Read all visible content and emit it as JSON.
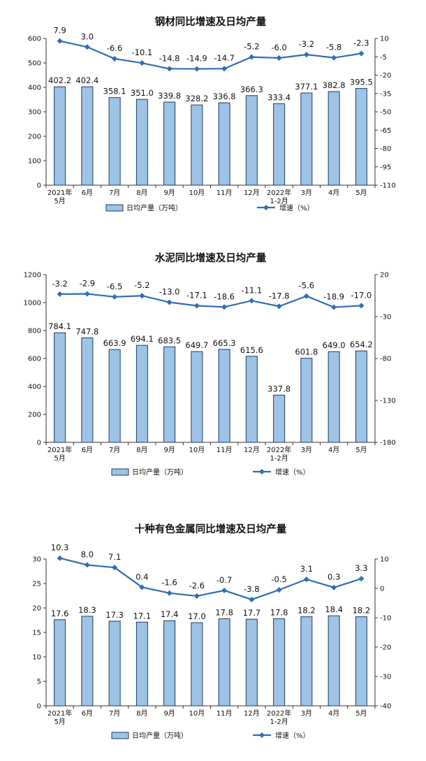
{
  "chart_data": [
    {
      "type": "bar+line",
      "title": "钢材同比增速及日均产量",
      "categories": [
        "2021年\n5月",
        "6月",
        "7月",
        "8月",
        "9月",
        "10月",
        "11月",
        "12月",
        "2022年\n1-2月",
        "3月",
        "4月",
        "5月"
      ],
      "series": [
        {
          "name": "日均产量（万吨）",
          "type": "bar",
          "axis": "left",
          "values": [
            402.2,
            402.4,
            358.1,
            351.0,
            339.8,
            328.2,
            336.8,
            366.3,
            333.4,
            377.1,
            382.8,
            395.5
          ],
          "labels": [
            "402.2",
            "402.4",
            "358.1",
            "351.0",
            "339.8",
            "328.2",
            "336.8",
            "366.3",
            "333.4",
            "377.1",
            "382.8",
            "395.5"
          ]
        },
        {
          "name": "增速（%）",
          "type": "line",
          "axis": "right",
          "values": [
            7.9,
            3.0,
            -6.6,
            -10.1,
            -14.8,
            -14.9,
            -14.7,
            -5.2,
            -6.0,
            -3.2,
            -5.8,
            -2.3
          ],
          "labels": [
            "7.9",
            "3.0",
            "-6.6",
            "-10.1",
            "-14.8",
            "-14.9",
            "-14.7",
            "-5.2",
            "-6.0",
            "-3.2",
            "-5.8",
            "-2.3"
          ]
        }
      ],
      "yleft": {
        "min": 0,
        "max": 600,
        "ticks": [
          "0",
          "100",
          "200",
          "300",
          "400",
          "500",
          "600"
        ]
      },
      "yright": {
        "min": -110,
        "max": 10,
        "ticks": [
          "10",
          "-5",
          "-20",
          "-35",
          "-50",
          "-65",
          "-80",
          "-95",
          "-110"
        ]
      },
      "legend": "bottom"
    },
    {
      "type": "bar+line",
      "title": "水泥同比增速及日均产量",
      "categories": [
        "2021年\n5月",
        "6月",
        "7月",
        "8月",
        "9月",
        "10月",
        "11月",
        "12月",
        "2022年\n1-2月",
        "3月",
        "4月",
        "5月"
      ],
      "series": [
        {
          "name": "日均产量（万吨）",
          "type": "bar",
          "axis": "left",
          "values": [
            784.1,
            747.8,
            663.9,
            694.1,
            683.5,
            649.7,
            665.3,
            615.6,
            337.8,
            601.8,
            649.0,
            654.2
          ],
          "labels": [
            "784.1",
            "747.8",
            "663.9",
            "694.1",
            "683.5",
            "649.7",
            "665.3",
            "615.6",
            "337.8",
            "601.8",
            "649.0",
            "654.2"
          ]
        },
        {
          "name": "增速（%）",
          "type": "line",
          "axis": "right",
          "values": [
            -3.2,
            -2.9,
            -6.5,
            -5.2,
            -13.0,
            -17.1,
            -18.6,
            -11.1,
            -17.8,
            -5.6,
            -18.9,
            -17.0
          ],
          "labels": [
            "-3.2",
            "-2.9",
            "-6.5",
            "-5.2",
            "-13.0",
            "-17.1",
            "-18.6",
            "-11.1",
            "-17.8",
            "-5.6",
            "-18.9",
            "-17.0"
          ]
        }
      ],
      "yleft": {
        "min": 0,
        "max": 1200,
        "ticks": [
          "0",
          "200",
          "400",
          "600",
          "800",
          "1000",
          "1200"
        ]
      },
      "yright": {
        "min": -180,
        "max": 20,
        "ticks": [
          "20",
          "-30",
          "-80",
          "-130",
          "-180"
        ]
      },
      "legend": "bottom"
    },
    {
      "type": "bar+line",
      "title": "十种有色金属同比增速及日均产量",
      "categories": [
        "2021年\n5月",
        "6月",
        "7月",
        "8月",
        "9月",
        "10月",
        "11月",
        "12月",
        "2022年\n1-2月",
        "3月",
        "4月",
        "5月"
      ],
      "series": [
        {
          "name": "日均产量（万吨）",
          "type": "bar",
          "axis": "left",
          "values": [
            17.6,
            18.3,
            17.3,
            17.1,
            17.4,
            17.0,
            17.8,
            17.7,
            17.8,
            18.2,
            18.4,
            18.2
          ],
          "labels": [
            "17.6",
            "18.3",
            "17.3",
            "17.1",
            "17.4",
            "17.0",
            "17.8",
            "17.7",
            "17.8",
            "18.2",
            "18.4",
            "18.2"
          ]
        },
        {
          "name": "增速（%）",
          "type": "line",
          "axis": "right",
          "values": [
            10.3,
            8.0,
            7.1,
            0.4,
            -1.6,
            -2.6,
            -0.7,
            -3.8,
            -0.5,
            3.1,
            0.3,
            3.3
          ],
          "labels": [
            "10.3",
            "8.0",
            "7.1",
            "0.4",
            "-1.6",
            "-2.6",
            "-0.7",
            "-3.8",
            "-0.5",
            "3.1",
            "0.3",
            "3.3"
          ]
        }
      ],
      "yleft": {
        "min": 0,
        "max": 30,
        "ticks": [
          "0",
          "5",
          "10",
          "15",
          "20",
          "25",
          "30"
        ]
      },
      "yright": {
        "min": -40,
        "max": 10,
        "ticks": [
          "10",
          "0",
          "-10",
          "-20",
          "-30",
          "-40"
        ]
      },
      "legend": "bottom"
    }
  ],
  "colors": {
    "bar_fill": "#9dc3e6",
    "bar_stroke": "#1f3a5f",
    "line": "#2e6eb5",
    "axis": "#333333"
  }
}
